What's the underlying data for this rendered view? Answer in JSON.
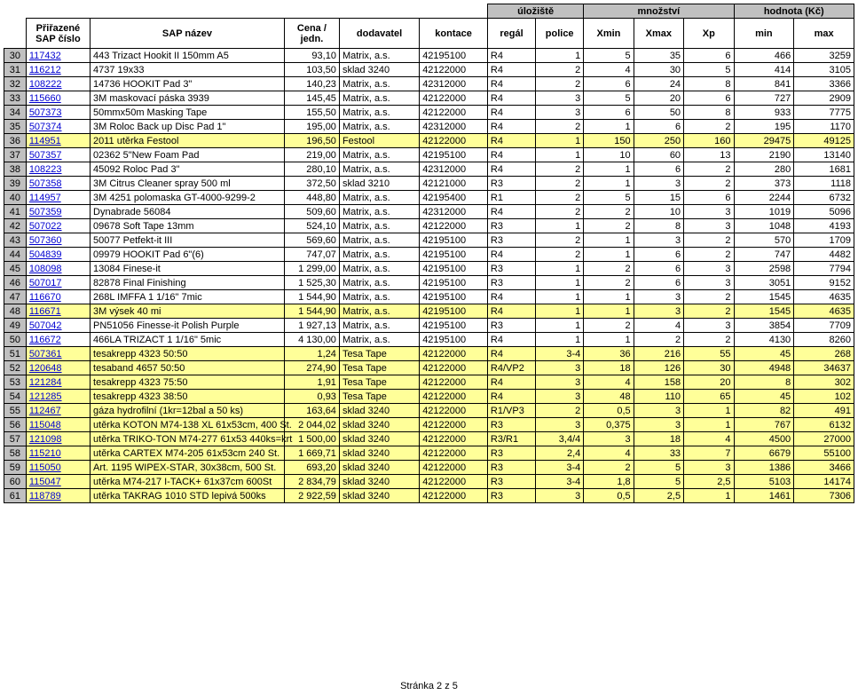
{
  "header_groups": {
    "ulooziste": "úložiště",
    "mnozstvi": "množství",
    "hodnota": "hodnota (Kč)"
  },
  "columns": {
    "sap_cislo": "Přiřazené SAP číslo",
    "sap_nazev": "SAP název",
    "cena": "Cena / jedn.",
    "dodavatel": "dodavatel",
    "kontace": "kontace",
    "regal": "regál",
    "police": "police",
    "xmin": "Xmin",
    "xmax": "Xmax",
    "xp": "Xp",
    "min": "min",
    "max": "max"
  },
  "rows": [
    {
      "n": 30,
      "sap": "117432",
      "name": "443 Trizact Hookit II 150mm A5",
      "price": "93,10",
      "sup": "Matrix, a.s.",
      "kon": "42195100",
      "reg": "R4",
      "pol": "1",
      "xmin": "5",
      "xmax": "35",
      "xp": "6",
      "min": "466",
      "max": "3259",
      "hl": false
    },
    {
      "n": 31,
      "sap": "116212",
      "name": "4737 19x33",
      "price": "103,50",
      "sup": "sklad 3240",
      "kon": "42122000",
      "reg": "R4",
      "pol": "2",
      "xmin": "4",
      "xmax": "30",
      "xp": "5",
      "min": "414",
      "max": "3105",
      "hl": false
    },
    {
      "n": 32,
      "sap": "108222",
      "name": "14736 HOOKIT Pad 3\"",
      "price": "140,23",
      "sup": "Matrix, a.s.",
      "kon": "42312000",
      "reg": "R4",
      "pol": "2",
      "xmin": "6",
      "xmax": "24",
      "xp": "8",
      "min": "841",
      "max": "3366",
      "hl": false
    },
    {
      "n": 33,
      "sap": "115660",
      "name": "3M maskovací páska 3939",
      "price": "145,45",
      "sup": "Matrix, a.s.",
      "kon": "42122000",
      "reg": "R4",
      "pol": "3",
      "xmin": "5",
      "xmax": "20",
      "xp": "6",
      "min": "727",
      "max": "2909",
      "hl": false
    },
    {
      "n": 34,
      "sap": "507373",
      "name": "50mmx50m Masking Tape",
      "price": "155,50",
      "sup": "Matrix, a.s.",
      "kon": "42122000",
      "reg": "R4",
      "pol": "3",
      "xmin": "6",
      "xmax": "50",
      "xp": "8",
      "min": "933",
      "max": "7775",
      "hl": false
    },
    {
      "n": 35,
      "sap": "507374",
      "name": "3M Roloc Back up Disc Pad 1\"",
      "price": "195,00",
      "sup": "Matrix, a.s.",
      "kon": "42312000",
      "reg": "R4",
      "pol": "2",
      "xmin": "1",
      "xmax": "6",
      "xp": "2",
      "min": "195",
      "max": "1170",
      "hl": false
    },
    {
      "n": 36,
      "sap": "114951",
      "name": "2011 utěrka Festool",
      "price": "196,50",
      "sup": "Festool",
      "kon": "42122000",
      "reg": "R4",
      "pol": "1",
      "xmin": "150",
      "xmax": "250",
      "xp": "160",
      "min": "29475",
      "max": "49125",
      "hl": true
    },
    {
      "n": 37,
      "sap": "507357",
      "name": "02362 5\"New Foam Pad",
      "price": "219,00",
      "sup": "Matrix, a.s.",
      "kon": "42195100",
      "reg": "R4",
      "pol": "1",
      "xmin": "10",
      "xmax": "60",
      "xp": "13",
      "min": "2190",
      "max": "13140",
      "hl": false
    },
    {
      "n": 38,
      "sap": "108223",
      "name": "45092 Roloc Pad 3\"",
      "price": "280,10",
      "sup": "Matrix, a.s.",
      "kon": "42312000",
      "reg": "R4",
      "pol": "2",
      "xmin": "1",
      "xmax": "6",
      "xp": "2",
      "min": "280",
      "max": "1681",
      "hl": false
    },
    {
      "n": 39,
      "sap": "507358",
      "name": "3M Citrus Cleaner spray 500 ml",
      "price": "372,50",
      "sup": "sklad 3210",
      "kon": "42121000",
      "reg": "R3",
      "pol": "2",
      "xmin": "1",
      "xmax": "3",
      "xp": "2",
      "min": "373",
      "max": "1118",
      "hl": false
    },
    {
      "n": 40,
      "sap": "114957",
      "name": "3M 4251 polomaska GT-4000-9299-2",
      "price": "448,80",
      "sup": "Matrix, a.s.",
      "kon": "42195400",
      "reg": "R1",
      "pol": "2",
      "xmin": "5",
      "xmax": "15",
      "xp": "6",
      "min": "2244",
      "max": "6732",
      "hl": false
    },
    {
      "n": 41,
      "sap": "507359",
      "name": "Dynabrade 56084",
      "price": "509,60",
      "sup": "Matrix, a.s.",
      "kon": "42312000",
      "reg": "R4",
      "pol": "2",
      "xmin": "2",
      "xmax": "10",
      "xp": "3",
      "min": "1019",
      "max": "5096",
      "hl": false
    },
    {
      "n": 42,
      "sap": "507022",
      "name": "09678 Soft Tape 13mm",
      "price": "524,10",
      "sup": "Matrix, a.s.",
      "kon": "42122000",
      "reg": "R3",
      "pol": "1",
      "xmin": "2",
      "xmax": "8",
      "xp": "3",
      "min": "1048",
      "max": "4193",
      "hl": false
    },
    {
      "n": 43,
      "sap": "507360",
      "name": "50077 Petfekt-it III",
      "price": "569,60",
      "sup": "Matrix, a.s.",
      "kon": "42195100",
      "reg": "R3",
      "pol": "2",
      "xmin": "1",
      "xmax": "3",
      "xp": "2",
      "min": "570",
      "max": "1709",
      "hl": false
    },
    {
      "n": 44,
      "sap": "504839",
      "name": "09979 HOOKIT Pad 6\"(6)",
      "price": "747,07",
      "sup": "Matrix, a.s.",
      "kon": "42195100",
      "reg": "R4",
      "pol": "2",
      "xmin": "1",
      "xmax": "6",
      "xp": "2",
      "min": "747",
      "max": "4482",
      "hl": false
    },
    {
      "n": 45,
      "sap": "108098",
      "name": "13084 Finese-it",
      "price": "1 299,00",
      "sup": "Matrix, a.s.",
      "kon": "42195100",
      "reg": "R3",
      "pol": "1",
      "xmin": "2",
      "xmax": "6",
      "xp": "3",
      "min": "2598",
      "max": "7794",
      "hl": false
    },
    {
      "n": 46,
      "sap": "507017",
      "name": "82878 Final Finishing",
      "price": "1 525,30",
      "sup": "Matrix, a.s.",
      "kon": "42195100",
      "reg": "R3",
      "pol": "1",
      "xmin": "2",
      "xmax": "6",
      "xp": "3",
      "min": "3051",
      "max": "9152",
      "hl": false
    },
    {
      "n": 47,
      "sap": "116670",
      "name": "268L IMFFA 1 1/16\" 7mic",
      "price": "1 544,90",
      "sup": "Matrix, a.s.",
      "kon": "42195100",
      "reg": "R4",
      "pol": "1",
      "xmin": "1",
      "xmax": "3",
      "xp": "2",
      "min": "1545",
      "max": "4635",
      "hl": false
    },
    {
      "n": 48,
      "sap": "116671",
      "name": "3M výsek 40 mi",
      "price": "1 544,90",
      "sup": "Matrix, a.s.",
      "kon": "42195100",
      "reg": "R4",
      "pol": "1",
      "xmin": "1",
      "xmax": "3",
      "xp": "2",
      "min": "1545",
      "max": "4635",
      "hl": true
    },
    {
      "n": 49,
      "sap": "507042",
      "name": "PN51056 Finesse-it Polish Purple",
      "price": "1 927,13",
      "sup": "Matrix, a.s.",
      "kon": "42195100",
      "reg": "R3",
      "pol": "1",
      "xmin": "2",
      "xmax": "4",
      "xp": "3",
      "min": "3854",
      "max": "7709",
      "hl": false
    },
    {
      "n": 50,
      "sap": "116672",
      "name": "466LA TRIZACT 1 1/16\" 5mic",
      "price": "4 130,00",
      "sup": "Matrix, a.s.",
      "kon": "42195100",
      "reg": "R4",
      "pol": "1",
      "xmin": "1",
      "xmax": "2",
      "xp": "2",
      "min": "4130",
      "max": "8260",
      "hl": false
    },
    {
      "n": 51,
      "sap": "507361",
      "name": "tesakrepp 4323 50:50",
      "price": "1,24",
      "sup": "Tesa Tape",
      "kon": "42122000",
      "reg": "R4",
      "pol": "3-4",
      "xmin": "36",
      "xmax": "216",
      "xp": "55",
      "min": "45",
      "max": "268",
      "hl": true
    },
    {
      "n": 52,
      "sap": "120648",
      "name": "tesaband 4657 50:50",
      "price": "274,90",
      "sup": "Tesa Tape",
      "kon": "42122000",
      "reg": "R4/VP2",
      "pol": "3",
      "xmin": "18",
      "xmax": "126",
      "xp": "30",
      "min": "4948",
      "max": "34637",
      "hl": true
    },
    {
      "n": 53,
      "sap": "121284",
      "name": "tesakrepp 4323 75:50",
      "price": "1,91",
      "sup": "Tesa Tape",
      "kon": "42122000",
      "reg": "R4",
      "pol": "3",
      "xmin": "4",
      "xmax": "158",
      "xp": "20",
      "min": "8",
      "max": "302",
      "hl": true
    },
    {
      "n": 54,
      "sap": "121285",
      "name": "tesakrepp 4323 38:50",
      "price": "0,93",
      "sup": "Tesa Tape",
      "kon": "42122000",
      "reg": "R4",
      "pol": "3",
      "xmin": "48",
      "xmax": "110",
      "xp": "65",
      "min": "45",
      "max": "102",
      "hl": true
    },
    {
      "n": 55,
      "sap": "112467",
      "name": "gáza hydrofilní (1kr=12bal a 50 ks)",
      "price": "163,64",
      "sup": "sklad 3240",
      "kon": "42122000",
      "reg": "R1/VP3",
      "pol": "2",
      "xmin": "0,5",
      "xmax": "3",
      "xp": "1",
      "min": "82",
      "max": "491",
      "hl": true
    },
    {
      "n": 56,
      "sap": "115048",
      "name": "utěrka KOTON M74-138 XL 61x53cm, 400 St.",
      "price": "2 044,02",
      "sup": "sklad 3240",
      "kon": "42122000",
      "reg": "R3",
      "pol": "3",
      "xmin": "0,375",
      "xmax": "3",
      "xp": "1",
      "min": "767",
      "max": "6132",
      "hl": true
    },
    {
      "n": 57,
      "sap": "121098",
      "name": "utěrka TRIKO-TON M74-277 61x53 440ks=krt",
      "price": "1 500,00",
      "sup": "sklad 3240",
      "kon": "42122000",
      "reg": "R3/R1",
      "pol": "3,4/4",
      "xmin": "3",
      "xmax": "18",
      "xp": "4",
      "min": "4500",
      "max": "27000",
      "hl": true
    },
    {
      "n": 58,
      "sap": "115210",
      "name": "utěrka CARTEX M74-205 61x53cm 240 St.",
      "price": "1 669,71",
      "sup": "sklad 3240",
      "kon": "42122000",
      "reg": "R3",
      "pol": "2,4",
      "xmin": "4",
      "xmax": "33",
      "xp": "7",
      "min": "6679",
      "max": "55100",
      "hl": true
    },
    {
      "n": 59,
      "sap": "115050",
      "name": "Art. 1195 WIPEX-STAR, 30x38cm, 500 St.",
      "price": "693,20",
      "sup": "sklad 3240",
      "kon": "42122000",
      "reg": "R3",
      "pol": "3-4",
      "xmin": "2",
      "xmax": "5",
      "xp": "3",
      "min": "1386",
      "max": "3466",
      "hl": true
    },
    {
      "n": 60,
      "sap": "115047",
      "name": "utěrka M74-217 I-TACK+ 61x37cm 600St",
      "price": "2 834,79",
      "sup": "sklad 3240",
      "kon": "42122000",
      "reg": "R3",
      "pol": "3-4",
      "xmin": "1,8",
      "xmax": "5",
      "xp": "2,5",
      "min": "5103",
      "max": "14174",
      "hl": true
    },
    {
      "n": 61,
      "sap": "118789",
      "name": "utěrka TAKRAG 1010 STD lepivá 500ks",
      "price": "2 922,59",
      "sup": "sklad 3240",
      "kon": "42122000",
      "reg": "R3",
      "pol": "3",
      "xmin": "0,5",
      "xmax": "2,5",
      "xp": "1",
      "min": "1461",
      "max": "7306",
      "hl": true
    }
  ],
  "footer": "Stránka 2 z 5"
}
